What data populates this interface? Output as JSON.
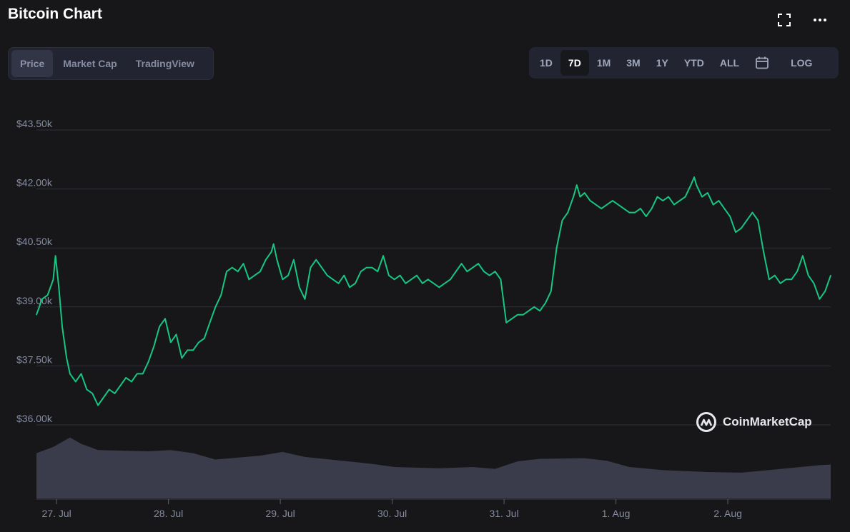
{
  "header": {
    "title": "Bitcoin Chart"
  },
  "icons": {
    "fullscreen": "fullscreen-icon",
    "more": "more-icon",
    "calendar": "calendar-icon"
  },
  "metric_tabs": [
    {
      "label": "Price",
      "active": true
    },
    {
      "label": "Market Cap",
      "active": false
    },
    {
      "label": "TradingView",
      "active": false
    }
  ],
  "range_tabs": [
    {
      "label": "1D",
      "active": false
    },
    {
      "label": "7D",
      "active": true
    },
    {
      "label": "1M",
      "active": false
    },
    {
      "label": "3M",
      "active": false
    },
    {
      "label": "1Y",
      "active": false
    },
    {
      "label": "YTD",
      "active": false
    },
    {
      "label": "ALL",
      "active": false
    }
  ],
  "log_label": "LOG",
  "watermark": {
    "text": "CoinMarketCap"
  },
  "colors": {
    "line": "#16c784",
    "grid": "#2f3138",
    "volume": "#3a3c4b",
    "axis_text": "#858ca2"
  },
  "chart_data": {
    "type": "line",
    "title": "",
    "xlabel": "",
    "ylabel": "",
    "ylim": [
      36000,
      43500
    ],
    "y_ticks": [
      "$43.50k",
      "$42.00k",
      "$40.50k",
      "$39.00k",
      "$37.50k",
      "$36.00k"
    ],
    "y_tick_values": [
      43500,
      42000,
      40500,
      39000,
      37500,
      36000
    ],
    "x_ticks": [
      "27. Jul",
      "28. Jul",
      "29. Jul",
      "30. Jul",
      "31. Jul",
      "1. Aug",
      "2. Aug"
    ],
    "x_tick_values": [
      0.18,
      1.18,
      2.18,
      3.18,
      4.18,
      5.18,
      6.18
    ],
    "x_range": [
      0,
      7.1
    ],
    "series": [
      {
        "values": [
          [
            0.0,
            38800
          ],
          [
            0.05,
            39200
          ],
          [
            0.1,
            39300
          ],
          [
            0.15,
            39700
          ],
          [
            0.17,
            40300
          ],
          [
            0.2,
            39500
          ],
          [
            0.23,
            38500
          ],
          [
            0.27,
            37700
          ],
          [
            0.3,
            37300
          ],
          [
            0.35,
            37100
          ],
          [
            0.4,
            37300
          ],
          [
            0.45,
            36900
          ],
          [
            0.5,
            36800
          ],
          [
            0.55,
            36500
          ],
          [
            0.6,
            36700
          ],
          [
            0.65,
            36900
          ],
          [
            0.7,
            36800
          ],
          [
            0.75,
            37000
          ],
          [
            0.8,
            37200
          ],
          [
            0.85,
            37100
          ],
          [
            0.9,
            37300
          ],
          [
            0.95,
            37300
          ],
          [
            1.0,
            37600
          ],
          [
            1.05,
            38000
          ],
          [
            1.1,
            38500
          ],
          [
            1.15,
            38700
          ],
          [
            1.2,
            38100
          ],
          [
            1.25,
            38300
          ],
          [
            1.3,
            37700
          ],
          [
            1.35,
            37900
          ],
          [
            1.4,
            37900
          ],
          [
            1.45,
            38100
          ],
          [
            1.5,
            38200
          ],
          [
            1.55,
            38600
          ],
          [
            1.6,
            39000
          ],
          [
            1.65,
            39300
          ],
          [
            1.7,
            39900
          ],
          [
            1.75,
            40000
          ],
          [
            1.8,
            39900
          ],
          [
            1.85,
            40100
          ],
          [
            1.9,
            39700
          ],
          [
            1.95,
            39800
          ],
          [
            2.0,
            39900
          ],
          [
            2.05,
            40200
          ],
          [
            2.1,
            40400
          ],
          [
            2.12,
            40600
          ],
          [
            2.15,
            40200
          ],
          [
            2.2,
            39700
          ],
          [
            2.25,
            39800
          ],
          [
            2.3,
            40200
          ],
          [
            2.35,
            39500
          ],
          [
            2.4,
            39200
          ],
          [
            2.45,
            40000
          ],
          [
            2.5,
            40200
          ],
          [
            2.55,
            40000
          ],
          [
            2.6,
            39800
          ],
          [
            2.65,
            39700
          ],
          [
            2.7,
            39600
          ],
          [
            2.75,
            39800
          ],
          [
            2.8,
            39500
          ],
          [
            2.85,
            39600
          ],
          [
            2.9,
            39900
          ],
          [
            2.95,
            40000
          ],
          [
            3.0,
            40000
          ],
          [
            3.05,
            39900
          ],
          [
            3.1,
            40300
          ],
          [
            3.15,
            39800
          ],
          [
            3.2,
            39700
          ],
          [
            3.25,
            39800
          ],
          [
            3.3,
            39600
          ],
          [
            3.35,
            39700
          ],
          [
            3.4,
            39800
          ],
          [
            3.45,
            39600
          ],
          [
            3.5,
            39700
          ],
          [
            3.55,
            39600
          ],
          [
            3.6,
            39500
          ],
          [
            3.65,
            39600
          ],
          [
            3.7,
            39700
          ],
          [
            3.75,
            39900
          ],
          [
            3.8,
            40100
          ],
          [
            3.85,
            39900
          ],
          [
            3.9,
            40000
          ],
          [
            3.95,
            40100
          ],
          [
            4.0,
            39900
          ],
          [
            4.05,
            39800
          ],
          [
            4.1,
            39900
          ],
          [
            4.15,
            39700
          ],
          [
            4.2,
            38600
          ],
          [
            4.25,
            38700
          ],
          [
            4.3,
            38800
          ],
          [
            4.35,
            38800
          ],
          [
            4.4,
            38900
          ],
          [
            4.45,
            39000
          ],
          [
            4.5,
            38900
          ],
          [
            4.55,
            39100
          ],
          [
            4.6,
            39400
          ],
          [
            4.65,
            40500
          ],
          [
            4.7,
            41200
          ],
          [
            4.75,
            41400
          ],
          [
            4.8,
            41800
          ],
          [
            4.83,
            42100
          ],
          [
            4.86,
            41800
          ],
          [
            4.9,
            41900
          ],
          [
            4.95,
            41700
          ],
          [
            5.0,
            41600
          ],
          [
            5.05,
            41500
          ],
          [
            5.1,
            41600
          ],
          [
            5.15,
            41700
          ],
          [
            5.2,
            41600
          ],
          [
            5.25,
            41500
          ],
          [
            5.3,
            41400
          ],
          [
            5.35,
            41400
          ],
          [
            5.4,
            41500
          ],
          [
            5.45,
            41300
          ],
          [
            5.5,
            41500
          ],
          [
            5.55,
            41800
          ],
          [
            5.6,
            41700
          ],
          [
            5.65,
            41800
          ],
          [
            5.7,
            41600
          ],
          [
            5.75,
            41700
          ],
          [
            5.8,
            41800
          ],
          [
            5.85,
            42100
          ],
          [
            5.88,
            42300
          ],
          [
            5.9,
            42100
          ],
          [
            5.95,
            41800
          ],
          [
            6.0,
            41900
          ],
          [
            6.05,
            41600
          ],
          [
            6.1,
            41700
          ],
          [
            6.15,
            41500
          ],
          [
            6.2,
            41300
          ],
          [
            6.25,
            40900
          ],
          [
            6.3,
            41000
          ],
          [
            6.35,
            41200
          ],
          [
            6.4,
            41400
          ],
          [
            6.45,
            41200
          ],
          [
            6.5,
            40400
          ],
          [
            6.55,
            39700
          ],
          [
            6.6,
            39800
          ],
          [
            6.65,
            39600
          ],
          [
            6.7,
            39700
          ],
          [
            6.75,
            39700
          ],
          [
            6.8,
            39900
          ],
          [
            6.85,
            40300
          ],
          [
            6.9,
            39800
          ],
          [
            6.95,
            39600
          ],
          [
            7.0,
            39200
          ],
          [
            7.05,
            39400
          ],
          [
            7.1,
            39800
          ]
        ]
      }
    ],
    "volume": [
      [
        0.0,
        0.72
      ],
      [
        0.15,
        0.82
      ],
      [
        0.3,
        0.97
      ],
      [
        0.4,
        0.87
      ],
      [
        0.55,
        0.77
      ],
      [
        1.0,
        0.75
      ],
      [
        1.2,
        0.77
      ],
      [
        1.4,
        0.72
      ],
      [
        1.6,
        0.62
      ],
      [
        2.0,
        0.68
      ],
      [
        2.2,
        0.74
      ],
      [
        2.4,
        0.66
      ],
      [
        3.0,
        0.55
      ],
      [
        3.2,
        0.5
      ],
      [
        3.6,
        0.48
      ],
      [
        3.9,
        0.5
      ],
      [
        4.1,
        0.47
      ],
      [
        4.3,
        0.59
      ],
      [
        4.5,
        0.63
      ],
      [
        4.9,
        0.64
      ],
      [
        5.1,
        0.6
      ],
      [
        5.3,
        0.5
      ],
      [
        5.6,
        0.45
      ],
      [
        6.0,
        0.42
      ],
      [
        6.3,
        0.41
      ],
      [
        6.6,
        0.46
      ],
      [
        7.0,
        0.53
      ],
      [
        7.1,
        0.54
      ]
    ]
  }
}
